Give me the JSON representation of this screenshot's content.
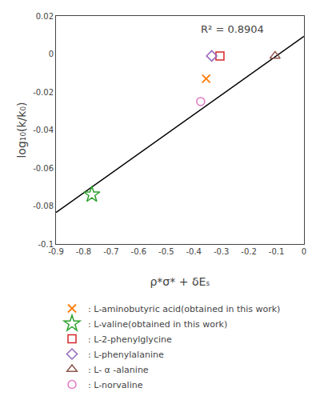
{
  "chart_data": {
    "type": "scatter",
    "x_label": "ρ*σ* + δEₛ",
    "y_label": "log₁₀(k/k₀)",
    "xlim": [
      -0.9,
      0.0
    ],
    "ylim": [
      -0.1,
      0.02
    ],
    "xticks": [
      -0.9,
      -0.8,
      -0.7,
      -0.6,
      -0.5,
      -0.4,
      -0.3,
      -0.2,
      -0.1,
      0.0
    ],
    "yticks": [
      -0.1,
      -0.08,
      -0.06,
      -0.04,
      -0.02,
      0.0,
      0.02
    ],
    "grid": false,
    "annotations": [
      {
        "text": "R² = 0.8904",
        "x": -0.38,
        "y": 0.017
      }
    ],
    "series": [
      {
        "type": "line",
        "color": "black",
        "x": [
          -0.9,
          0.0
        ],
        "values": [
          -0.0834,
          0.0093
        ]
      },
      {
        "name": ": L-aminobutyric acid(obtained in this work)",
        "marker": "x",
        "x": [
          -0.355
        ],
        "values": [
          -0.013
        ]
      },
      {
        "name": ": L-valine(obtained in this work)",
        "marker": "star",
        "x": [
          -0.77
        ],
        "values": [
          -0.074
        ]
      },
      {
        "name": ": L-2-phenylglycine",
        "marker": "square",
        "x": [
          -0.305
        ],
        "values": [
          -0.001
        ]
      },
      {
        "name": ": L-phenylalanine",
        "marker": "diamond",
        "x": [
          -0.335
        ],
        "values": [
          -0.001
        ]
      },
      {
        "name": ": L- α -alanine",
        "marker": "triangle-up",
        "x": [
          -0.105
        ],
        "values": [
          -0.001
        ]
      },
      {
        "name": ": L-norvaline",
        "marker": "circle",
        "x": [
          -0.375
        ],
        "values": [
          -0.025
        ]
      }
    ]
  }
}
